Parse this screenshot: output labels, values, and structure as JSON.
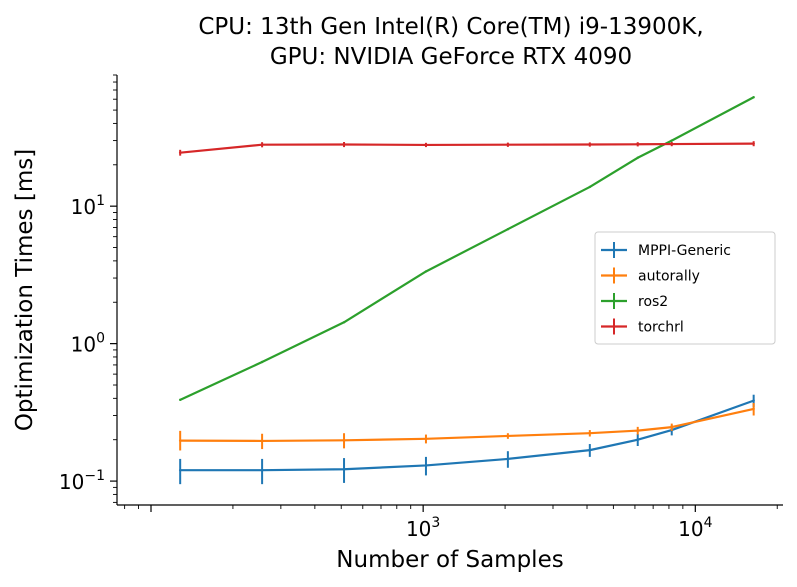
{
  "chart_data": {
    "type": "line",
    "title_lines": [
      "CPU: 13th Gen Intel(R) Core(TM) i9-13900K,",
      "GPU: NVIDIA GeForce RTX 4090"
    ],
    "xlabel": "Number of Samples",
    "ylabel": "Optimization Times [ms]",
    "xscale": "log",
    "yscale": "log",
    "xlim": [
      75,
      21000
    ],
    "ylim": [
      0.067,
      90
    ],
    "x_ticks": [
      {
        "base": "10",
        "exp": "3",
        "value": 1000
      },
      {
        "base": "10",
        "exp": "4",
        "value": 10000
      }
    ],
    "y_ticks": [
      {
        "base": "10",
        "exp": "−1",
        "value": 0.1
      },
      {
        "base": "10",
        "exp": "0",
        "value": 1
      },
      {
        "base": "10",
        "exp": "1",
        "value": 10
      }
    ],
    "grid": false,
    "legend_position": "center-right",
    "series": [
      {
        "name": "MPPI-Generic",
        "color": "#1f77b4",
        "x": [
          128,
          256,
          512,
          1024,
          2048,
          4096,
          6144,
          8192,
          16384
        ],
        "y": [
          0.12,
          0.12,
          0.122,
          0.13,
          0.145,
          0.168,
          0.2,
          0.235,
          0.385
        ],
        "err_low": [
          0.025,
          0.025,
          0.025,
          0.02,
          0.02,
          0.018,
          0.02,
          0.02,
          0.04
        ],
        "err_high": [
          0.025,
          0.025,
          0.025,
          0.02,
          0.02,
          0.018,
          0.02,
          0.02,
          0.04
        ]
      },
      {
        "name": "autorally",
        "color": "#ff7f0e",
        "x": [
          128,
          256,
          512,
          1024,
          2048,
          4096,
          6144,
          8192,
          16384
        ],
        "y": [
          0.197,
          0.196,
          0.198,
          0.203,
          0.213,
          0.223,
          0.233,
          0.247,
          0.335
        ],
        "err_low": [
          0.03,
          0.025,
          0.025,
          0.015,
          0.01,
          0.012,
          0.015,
          0.015,
          0.035
        ],
        "err_high": [
          0.035,
          0.025,
          0.025,
          0.015,
          0.01,
          0.012,
          0.015,
          0.015,
          0.035
        ]
      },
      {
        "name": "ros2",
        "color": "#2ca02c",
        "x": [
          128,
          256,
          512,
          1024,
          2048,
          4096,
          6144,
          8192,
          16384
        ],
        "y": [
          0.39,
          0.735,
          1.43,
          3.35,
          6.8,
          13.8,
          22.5,
          30,
          62
        ],
        "err_low": [
          0,
          0,
          0,
          0,
          0,
          0,
          0,
          0,
          0
        ],
        "err_high": [
          0,
          0,
          0,
          0,
          0,
          0,
          0,
          0,
          0
        ]
      },
      {
        "name": "torchrl",
        "color": "#d62728",
        "x": [
          128,
          256,
          512,
          1024,
          2048,
          4096,
          6144,
          8192,
          16384
        ],
        "y": [
          24.5,
          28.0,
          28.1,
          27.9,
          28.0,
          28.1,
          28.2,
          28.3,
          28.5
        ],
        "err_low": [
          1.2,
          1.2,
          1.2,
          1.0,
          1.0,
          1.0,
          1.0,
          1.0,
          1.2
        ],
        "err_high": [
          1.2,
          1.2,
          1.2,
          1.0,
          1.0,
          1.0,
          1.0,
          1.0,
          1.2
        ]
      }
    ]
  }
}
